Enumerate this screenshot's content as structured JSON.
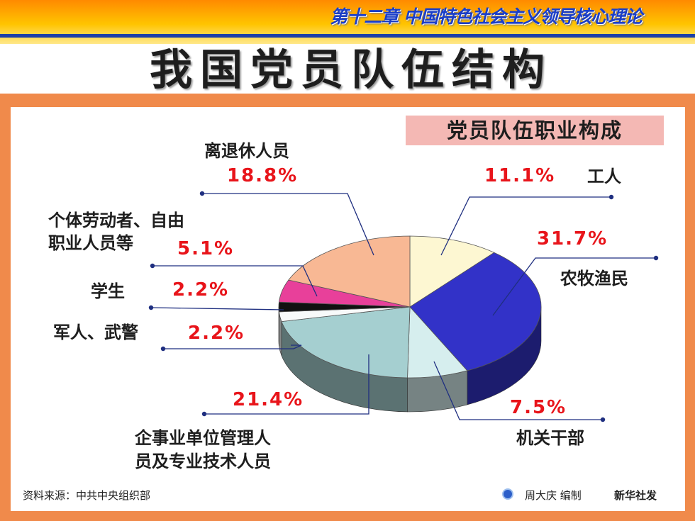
{
  "header": {
    "chapter": "第十二章  中国特色社会主义领导核心理论"
  },
  "main_title": "我国党员队伍结构",
  "panel_title": "党员队伍职业构成",
  "footer": {
    "source": "资料来源：中共中央组织部",
    "credit": "周大庆 编制",
    "agency": "新华社发",
    "agency_icon": "xinhua-logo-icon"
  },
  "chart_data": {
    "type": "pie",
    "title": "党员队伍职业构成",
    "unit": "%",
    "slices": [
      {
        "key": "worker",
        "label": "工人",
        "label_lines": [
          "工人"
        ],
        "value": 11.1,
        "value_label": "11.1%",
        "color": "#fdf7d2"
      },
      {
        "key": "farmer",
        "label": "农牧渔民",
        "label_lines": [
          "农牧渔民"
        ],
        "value": 31.7,
        "value_label": "31.7%",
        "color": "#3232c8"
      },
      {
        "key": "official",
        "label": "机关干部",
        "label_lines": [
          "机关干部"
        ],
        "value": 7.5,
        "value_label": "7.5%",
        "color": "#d6eeee"
      },
      {
        "key": "enterprise",
        "label": "企事业单位管理人员及专业技术人员",
        "label_lines": [
          "企事业单位管理人",
          "员及专业技术人员"
        ],
        "value": 21.4,
        "value_label": "21.4%",
        "color": "#a5cfd0"
      },
      {
        "key": "military",
        "label": "军人、武警",
        "label_lines": [
          "军人、武警"
        ],
        "value": 2.2,
        "value_label": "2.2%",
        "color": "#f8fafa"
      },
      {
        "key": "student",
        "label": "学生",
        "label_lines": [
          "学生"
        ],
        "value": 2.2,
        "value_label": "2.2%",
        "color": "#111111"
      },
      {
        "key": "selfemployed",
        "label": "个体劳动者、自由职业人员等",
        "label_lines": [
          "个体劳动者、自由",
          "职业人员等"
        ],
        "value": 5.1,
        "value_label": "5.1%",
        "color": "#e8409a"
      },
      {
        "key": "retired",
        "label": "离退休人员",
        "label_lines": [
          "离退休人员"
        ],
        "value": 18.8,
        "value_label": "18.8%",
        "color": "#f8b894"
      }
    ]
  }
}
